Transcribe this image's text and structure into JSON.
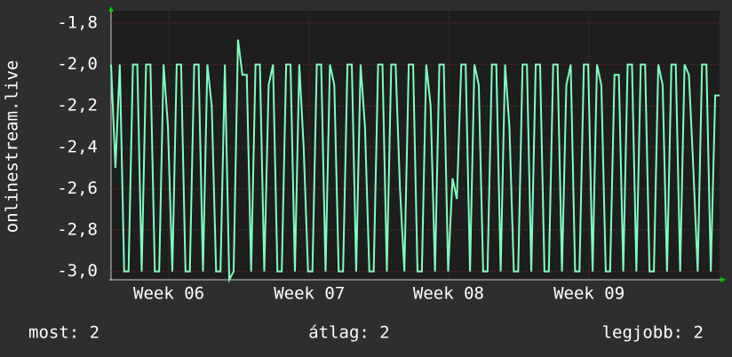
{
  "chart_data": {
    "type": "line",
    "ylabel": "onlinestream.live",
    "ylim": [
      -3.04,
      -1.74
    ],
    "yticks": [
      {
        "value": -1.8,
        "label": "-1,8"
      },
      {
        "value": -2.0,
        "label": "-2,0"
      },
      {
        "value": -2.2,
        "label": "-2,2"
      },
      {
        "value": -2.4,
        "label": "-2,4"
      },
      {
        "value": -2.6,
        "label": "-2,6"
      },
      {
        "value": -2.8,
        "label": "-2,8"
      },
      {
        "value": -3.0,
        "label": "-3,0"
      }
    ],
    "xlim": [
      0,
      139
    ],
    "xticks": [
      {
        "value": 13.2,
        "label": "Week 06"
      },
      {
        "value": 45.3,
        "label": "Week 07"
      },
      {
        "value": 77.1,
        "label": "Week 08"
      },
      {
        "value": 109.2,
        "label": "Week 09"
      }
    ],
    "grid": true,
    "series": [
      {
        "color": "#80ffc0",
        "values": [
          -2.0,
          -2.5,
          -2.0,
          -3.0,
          -3.0,
          -2.0,
          -2.0,
          -3.0,
          -2.0,
          -2.0,
          -3.0,
          -3.0,
          -2.0,
          -2.3,
          -3.0,
          -2.0,
          -2.0,
          -3.0,
          -3.0,
          -2.0,
          -2.0,
          -3.0,
          -2.0,
          -2.2,
          -3.0,
          -3.0,
          -2.0,
          -3.04,
          -3.0,
          -1.88,
          -2.05,
          -2.05,
          -3.0,
          -2.0,
          -2.0,
          -3.0,
          -2.1,
          -2.0,
          -3.0,
          -3.0,
          -2.0,
          -2.0,
          -3.0,
          -2.0,
          -2.4,
          -3.0,
          -3.0,
          -2.0,
          -2.0,
          -3.0,
          -2.0,
          -2.1,
          -3.0,
          -3.0,
          -2.0,
          -2.0,
          -3.0,
          -2.0,
          -2.3,
          -3.0,
          -3.0,
          -2.0,
          -2.0,
          -3.0,
          -2.0,
          -2.0,
          -2.6,
          -3.0,
          -2.0,
          -2.0,
          -3.0,
          -3.0,
          -2.0,
          -2.2,
          -3.0,
          -2.0,
          -2.0,
          -3.0,
          -2.55,
          -2.65,
          -2.0,
          -2.0,
          -3.0,
          -2.0,
          -2.1,
          -3.0,
          -3.0,
          -2.0,
          -2.0,
          -3.0,
          -2.0,
          -2.3,
          -3.0,
          -3.0,
          -2.0,
          -2.0,
          -3.0,
          -2.0,
          -2.0,
          -3.0,
          -3.0,
          -2.0,
          -2.0,
          -3.0,
          -2.1,
          -2.0,
          -3.0,
          -3.0,
          -2.0,
          -2.0,
          -3.0,
          -2.0,
          -2.1,
          -3.0,
          -3.0,
          -2.05,
          -2.05,
          -3.0,
          -2.0,
          -2.0,
          -3.0,
          -2.0,
          -2.0,
          -3.0,
          -3.0,
          -2.0,
          -2.1,
          -3.0,
          -2.0,
          -2.0,
          -3.0,
          -2.0,
          -2.05,
          -2.5,
          -3.0,
          -2.0,
          -2.0,
          -3.0,
          -2.15,
          -2.15
        ]
      }
    ],
    "legend": [
      "most: 2",
      "átlag: 2",
      "legjobb: 2"
    ]
  }
}
